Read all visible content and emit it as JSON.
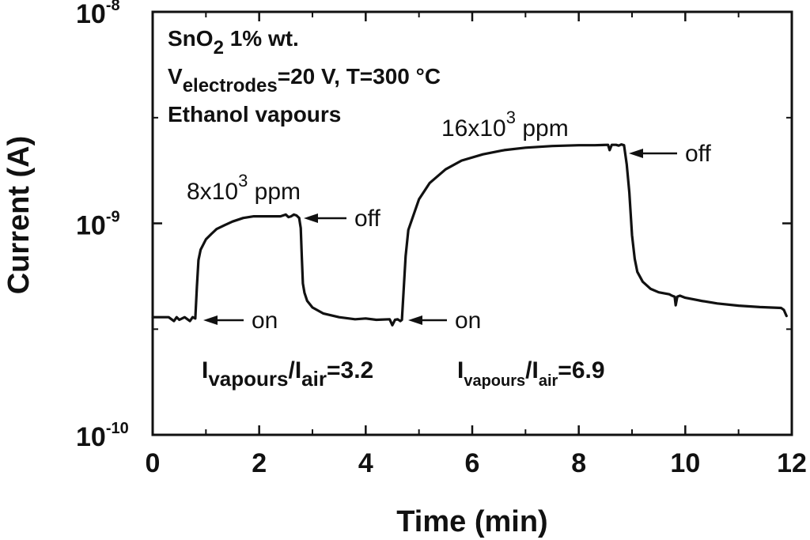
{
  "chart_data": {
    "type": "line",
    "xlabel": "Time (min)",
    "ylabel": "Current (A)",
    "xlim": [
      0,
      12
    ],
    "ylim": [
      1e-10,
      1e-08
    ],
    "y_scale": "log",
    "grid": false,
    "legend": "none",
    "x_ticks": [
      "0",
      "2",
      "4",
      "6",
      "8",
      "10",
      "12"
    ],
    "y_ticks": [
      {
        "base": "10",
        "exp": "-10"
      },
      {
        "base": "10",
        "exp": "-9"
      },
      {
        "base": "10",
        "exp": "-8"
      }
    ],
    "info_lines": [
      {
        "parts": [
          {
            "t": "SnO"
          },
          {
            "t": "2",
            "sub": true
          },
          {
            "t": " 1% wt."
          }
        ]
      },
      {
        "parts": [
          {
            "t": "V"
          },
          {
            "t": "electrodes",
            "sub": true
          },
          {
            "t": "=20 V, T=300 °C"
          }
        ]
      },
      {
        "parts": [
          {
            "t": "Ethanol vapours"
          }
        ]
      }
    ],
    "concentrations": [
      {
        "base": "8x10",
        "exp": "3",
        "unit": " ppm"
      },
      {
        "base": "16x10",
        "exp": "3",
        "unit": " ppm"
      }
    ],
    "annotations": {
      "on": "on",
      "off": "off"
    },
    "ratios": [
      {
        "I": "I",
        "vap": "vapours",
        "slash": "/I",
        "air": "air",
        "val": "=3.2"
      },
      {
        "I": "I",
        "vap": "vapours",
        "slash": "/I",
        "air": "air",
        "val": "=6.9"
      }
    ],
    "series": [
      {
        "x": [
          0.0,
          0.3,
          0.4,
          0.45,
          0.5,
          0.6,
          0.7,
          0.75,
          0.8,
          0.83,
          0.86,
          0.9,
          1.0,
          1.1,
          1.2,
          1.35,
          1.5,
          1.7,
          1.9,
          2.2,
          2.4,
          2.5,
          2.55,
          2.6,
          2.65,
          2.7,
          2.75,
          2.78,
          2.8,
          2.82,
          2.85,
          2.9,
          3.0,
          3.2,
          3.5,
          3.8,
          4.0,
          4.2,
          4.45,
          4.5,
          4.55,
          4.6,
          4.65,
          4.68,
          4.71,
          4.75,
          4.8,
          5.0,
          5.2,
          5.5,
          5.8,
          6.2,
          6.6,
          7.0,
          7.5,
          8.0,
          8.3,
          8.55,
          8.58,
          8.62,
          8.7,
          8.75,
          8.8,
          8.85,
          8.9,
          8.95,
          9.0,
          9.05,
          9.1,
          9.2,
          9.35,
          9.5,
          9.7,
          9.75,
          9.8,
          9.82,
          9.85,
          9.9,
          10.0,
          10.3,
          10.6,
          11.0,
          11.4,
          11.8,
          11.85,
          11.9
        ],
        "y": [
          3.6e-10,
          3.6e-10,
          3.45e-10,
          3.6e-10,
          3.5e-10,
          3.6e-10,
          3.45e-10,
          3.6e-10,
          3.55e-10,
          5e-10,
          6.7e-10,
          7.5e-10,
          8.4e-10,
          8.9e-10,
          9.4e-10,
          9.8e-10,
          1.02e-09,
          1.06e-09,
          1.08e-09,
          1.08e-09,
          1.08e-09,
          1.1e-09,
          1.07e-09,
          1.08e-09,
          1.1e-09,
          1.09e-09,
          1.06e-09,
          9.5e-10,
          7e-10,
          5.2e-10,
          4.7e-10,
          4.3e-10,
          4e-10,
          3.75e-10,
          3.6e-10,
          3.52e-10,
          3.55e-10,
          3.5e-10,
          3.52e-10,
          3.3e-10,
          3.5e-10,
          3.52e-10,
          3.45e-10,
          3.5e-10,
          4.7e-10,
          7e-10,
          9.3e-10,
          1.3e-09,
          1.55e-09,
          1.8e-09,
          1.98e-09,
          2.12e-09,
          2.22e-09,
          2.28e-09,
          2.32e-09,
          2.34e-09,
          2.34e-09,
          2.35e-09,
          2.22e-09,
          2.35e-09,
          2.35e-09,
          2.33e-09,
          2.36e-09,
          2.34e-09,
          1.9e-09,
          1.4e-09,
          8.8e-10,
          6.8e-10,
          5.9e-10,
          5.3e-10,
          4.9e-10,
          4.72e-10,
          4.62e-10,
          4.55e-10,
          4.5e-10,
          4.1e-10,
          4.5e-10,
          4.55e-10,
          4.45e-10,
          4.3e-10,
          4.18e-10,
          4.08e-10,
          4.02e-10,
          3.98e-10,
          3.9e-10,
          3.65e-10
        ]
      }
    ]
  }
}
